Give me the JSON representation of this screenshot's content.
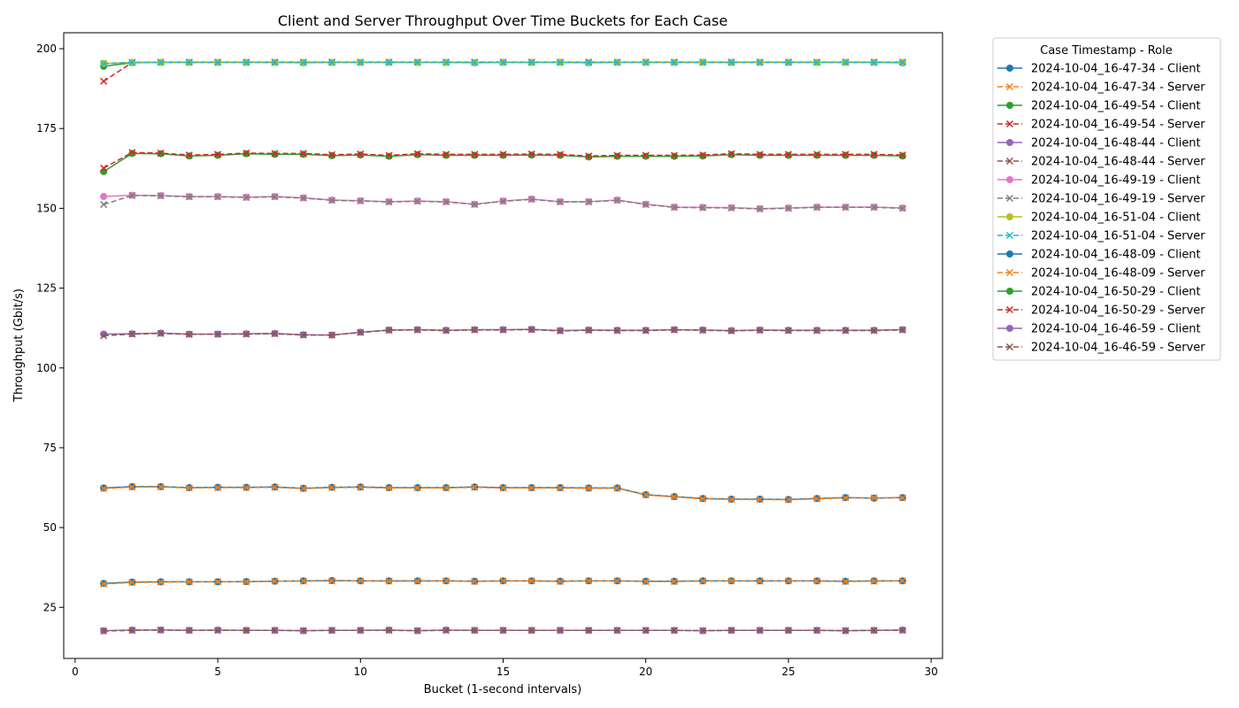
{
  "chart_data": {
    "type": "line",
    "title": "Client and Server Throughput Over Time Buckets for Each Case",
    "xlabel": "Bucket (1-second intervals)",
    "ylabel": "Throughput (Gbit/s)",
    "xlim": [
      -0.4,
      30.4
    ],
    "ylim": [
      9,
      205
    ],
    "xticks": [
      0,
      5,
      10,
      15,
      20,
      25,
      30
    ],
    "yticks": [
      25,
      50,
      75,
      100,
      125,
      150,
      175,
      200
    ],
    "grid": false,
    "legend_title": "Case Timestamp - Role",
    "legend_position": "outside-top-right",
    "x": [
      1,
      2,
      3,
      4,
      5,
      6,
      7,
      8,
      9,
      10,
      11,
      12,
      13,
      14,
      15,
      16,
      17,
      18,
      19,
      20,
      21,
      22,
      23,
      24,
      25,
      26,
      27,
      28,
      29
    ],
    "series": [
      {
        "name": "2024-10-04_16-47-34 - Client",
        "color": "#1f77b4",
        "marker": "circle",
        "dash": "solid",
        "values": [
          32.5,
          32.9,
          33.0,
          33.0,
          33.0,
          33.1,
          33.2,
          33.3,
          33.4,
          33.3,
          33.3,
          33.3,
          33.3,
          33.2,
          33.3,
          33.3,
          33.2,
          33.3,
          33.3,
          33.2,
          33.2,
          33.3,
          33.3,
          33.3,
          33.3,
          33.3,
          33.2,
          33.3,
          33.3
        ]
      },
      {
        "name": "2024-10-04_16-47-34 - Server",
        "color": "#ff7f0e",
        "marker": "x",
        "dash": "dashed",
        "values": [
          32.3,
          32.8,
          32.9,
          33.0,
          33.0,
          33.0,
          33.2,
          33.2,
          33.3,
          33.3,
          33.2,
          33.2,
          33.3,
          33.1,
          33.3,
          33.3,
          33.1,
          33.3,
          33.3,
          33.1,
          33.1,
          33.2,
          33.3,
          33.2,
          33.3,
          33.2,
          33.1,
          33.2,
          33.3
        ]
      },
      {
        "name": "2024-10-04_16-49-54 - Client",
        "color": "#2ca02c",
        "marker": "circle",
        "dash": "solid",
        "values": [
          194.5,
          195.6,
          195.7,
          195.7,
          195.7,
          195.7,
          195.7,
          195.6,
          195.7,
          195.7,
          195.7,
          195.7,
          195.7,
          195.6,
          195.7,
          195.7,
          195.7,
          195.6,
          195.7,
          195.7,
          195.7,
          195.7,
          195.7,
          195.7,
          195.7,
          195.7,
          195.7,
          195.7,
          195.6
        ]
      },
      {
        "name": "2024-10-04_16-49-54 - Server",
        "color": "#d62728",
        "marker": "x",
        "dash": "dashed",
        "values": [
          189.8,
          195.7,
          195.8,
          195.8,
          195.8,
          195.8,
          195.8,
          195.8,
          195.8,
          195.8,
          195.8,
          195.8,
          195.8,
          195.8,
          195.8,
          195.8,
          195.8,
          195.8,
          195.8,
          195.8,
          195.8,
          195.8,
          195.8,
          195.8,
          195.8,
          195.8,
          195.8,
          195.8,
          195.8
        ]
      },
      {
        "name": "2024-10-04_16-48-44 - Client",
        "color": "#9467bd",
        "marker": "circle",
        "dash": "solid",
        "values": [
          17.7,
          17.9,
          17.9,
          17.8,
          17.9,
          17.8,
          17.8,
          17.7,
          17.8,
          17.8,
          17.9,
          17.7,
          17.9,
          17.8,
          17.8,
          17.8,
          17.8,
          17.8,
          17.8,
          17.8,
          17.8,
          17.7,
          17.8,
          17.8,
          17.8,
          17.8,
          17.7,
          17.8,
          17.9
        ]
      },
      {
        "name": "2024-10-04_16-48-44 - Server",
        "color": "#8c564b",
        "marker": "x",
        "dash": "dashed",
        "values": [
          17.6,
          17.8,
          17.9,
          17.8,
          17.8,
          17.8,
          17.8,
          17.7,
          17.8,
          17.8,
          17.8,
          17.7,
          17.8,
          17.8,
          17.8,
          17.8,
          17.8,
          17.8,
          17.8,
          17.8,
          17.8,
          17.7,
          17.8,
          17.8,
          17.8,
          17.8,
          17.7,
          17.8,
          17.8
        ]
      },
      {
        "name": "2024-10-04_16-49-19 - Client",
        "color": "#e377c2",
        "marker": "circle",
        "dash": "solid",
        "values": [
          153.7,
          154.1,
          154.0,
          153.7,
          153.7,
          153.5,
          153.7,
          153.3,
          152.6,
          152.4,
          152.1,
          152.3,
          152.1,
          151.3,
          152.3,
          152.9,
          152.1,
          152.1,
          152.6,
          151.3,
          150.4,
          150.3,
          150.2,
          149.9,
          150.1,
          150.4,
          150.4,
          150.4,
          150.1
        ]
      },
      {
        "name": "2024-10-04_16-49-19 - Server",
        "color": "#7f7f7f",
        "marker": "x",
        "dash": "dashed",
        "values": [
          151.2,
          154.0,
          153.9,
          153.6,
          153.6,
          153.4,
          153.6,
          153.2,
          152.5,
          152.3,
          152.0,
          152.2,
          152.0,
          151.2,
          152.2,
          152.8,
          152.0,
          152.0,
          152.5,
          151.2,
          150.3,
          150.2,
          150.1,
          149.8,
          150.0,
          150.3,
          150.3,
          150.3,
          150.0
        ]
      },
      {
        "name": "2024-10-04_16-51-04 - Client",
        "color": "#bcbd22",
        "marker": "circle",
        "dash": "solid",
        "values": [
          195.4,
          195.7,
          195.7,
          195.7,
          195.7,
          195.7,
          195.7,
          195.7,
          195.7,
          195.7,
          195.7,
          195.7,
          195.7,
          195.7,
          195.7,
          195.7,
          195.7,
          195.7,
          195.7,
          195.7,
          195.7,
          195.7,
          195.7,
          195.7,
          195.7,
          195.7,
          195.7,
          195.7,
          195.7
        ]
      },
      {
        "name": "2024-10-04_16-51-04 - Server",
        "color": "#17becf",
        "marker": "x",
        "dash": "dashed",
        "values": [
          195.3,
          195.7,
          195.7,
          195.7,
          195.7,
          195.7,
          195.7,
          195.7,
          195.7,
          195.7,
          195.7,
          195.7,
          195.7,
          195.7,
          195.7,
          195.7,
          195.7,
          195.7,
          195.7,
          195.7,
          195.7,
          195.7,
          195.7,
          195.7,
          195.7,
          195.7,
          195.7,
          195.7,
          195.7
        ]
      },
      {
        "name": "2024-10-04_16-48-09 - Client",
        "color": "#1f77b4",
        "marker": "circle",
        "dash": "solid",
        "values": [
          62.4,
          62.8,
          62.8,
          62.5,
          62.6,
          62.6,
          62.7,
          62.3,
          62.6,
          62.7,
          62.5,
          62.5,
          62.5,
          62.7,
          62.5,
          62.5,
          62.5,
          62.4,
          62.4,
          60.3,
          59.7,
          59.1,
          58.9,
          58.9,
          58.8,
          59.1,
          59.4,
          59.2,
          59.4
        ]
      },
      {
        "name": "2024-10-04_16-48-09 - Server",
        "color": "#ff7f0e",
        "marker": "x",
        "dash": "dashed",
        "values": [
          62.2,
          62.7,
          62.7,
          62.4,
          62.5,
          62.5,
          62.6,
          62.2,
          62.5,
          62.6,
          62.4,
          62.4,
          62.4,
          62.6,
          62.4,
          62.4,
          62.4,
          62.3,
          62.3,
          60.2,
          59.6,
          59.0,
          58.8,
          58.8,
          58.7,
          59.0,
          59.3,
          59.3,
          59.3
        ]
      },
      {
        "name": "2024-10-04_16-50-29 - Client",
        "color": "#2ca02c",
        "marker": "circle",
        "dash": "solid",
        "values": [
          161.5,
          167.2,
          167.1,
          166.4,
          166.6,
          167.1,
          166.9,
          166.9,
          166.5,
          166.7,
          166.3,
          166.8,
          166.6,
          166.6,
          166.6,
          166.7,
          166.6,
          166.1,
          166.3,
          166.3,
          166.3,
          166.4,
          166.8,
          166.6,
          166.6,
          166.6,
          166.6,
          166.6,
          166.4
        ]
      },
      {
        "name": "2024-10-04_16-50-29 - Server",
        "color": "#d62728",
        "marker": "x",
        "dash": "dashed",
        "values": [
          162.6,
          167.5,
          167.3,
          166.7,
          166.9,
          167.3,
          167.2,
          167.2,
          166.8,
          167.0,
          166.6,
          167.1,
          166.9,
          166.9,
          166.9,
          167.0,
          166.9,
          166.4,
          166.6,
          166.6,
          166.6,
          166.7,
          167.1,
          166.9,
          166.9,
          166.9,
          166.9,
          166.9,
          166.7
        ]
      },
      {
        "name": "2024-10-04_16-46-59 - Client",
        "color": "#9467bd",
        "marker": "circle",
        "dash": "solid",
        "values": [
          110.6,
          110.7,
          110.9,
          110.6,
          110.6,
          110.7,
          110.8,
          110.4,
          110.3,
          111.2,
          111.9,
          112.0,
          111.8,
          112.0,
          112.0,
          112.1,
          111.7,
          111.9,
          111.8,
          111.8,
          112.0,
          111.9,
          111.7,
          111.9,
          111.8,
          111.8,
          111.8,
          111.8,
          112.0
        ]
      },
      {
        "name": "2024-10-04_16-46-59 - Server",
        "color": "#8c564b",
        "marker": "x",
        "dash": "dashed",
        "values": [
          110.1,
          110.6,
          110.8,
          110.5,
          110.6,
          110.6,
          110.7,
          110.3,
          110.3,
          111.1,
          111.8,
          111.9,
          111.7,
          111.9,
          111.9,
          112.0,
          111.6,
          111.8,
          111.7,
          111.7,
          111.9,
          111.8,
          111.6,
          111.8,
          111.7,
          111.7,
          111.7,
          111.7,
          111.9
        ]
      }
    ]
  }
}
